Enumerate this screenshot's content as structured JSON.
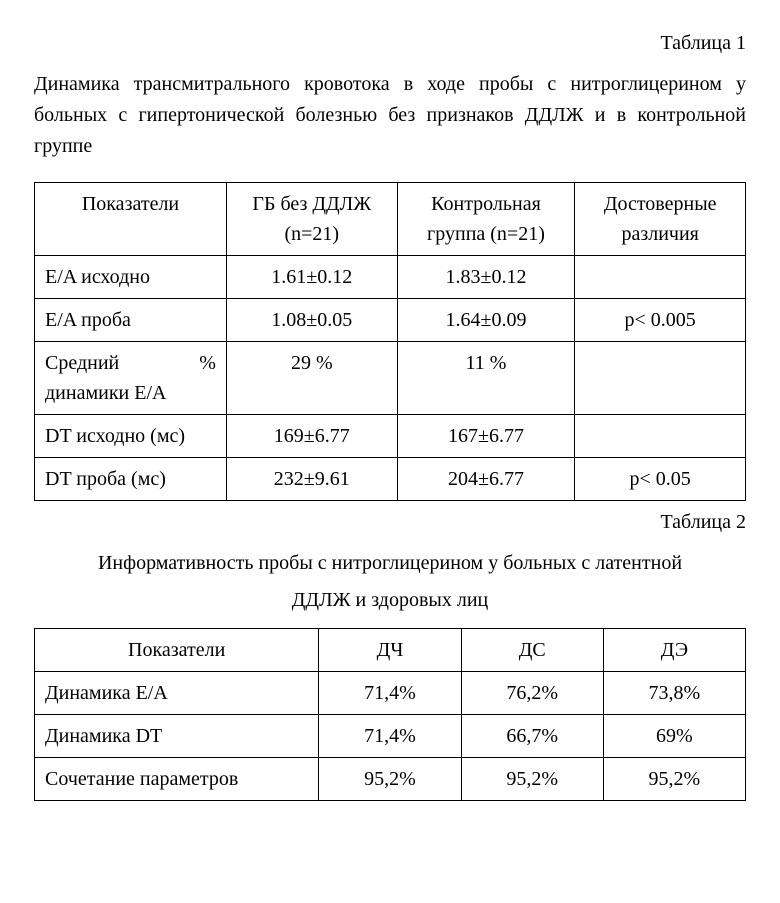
{
  "table1": {
    "label": "Таблица 1",
    "description": "Динамика трансмитрального кровотока в ходе пробы с нитроглицерином у больных с гипертонической болезнью без признаков ДДЛЖ и в контрольной группе",
    "columns": [
      "Показатели",
      "ГБ без ДДЛЖ (n=21)",
      "Контрольная группа (n=21)",
      "Достоверные различия"
    ],
    "rows": [
      {
        "param": "E/A исходно",
        "c2": "1.61±0.12",
        "c3": "1.83±0.12",
        "c4": ""
      },
      {
        "param": "E/A проба",
        "c2": "1.08±0.05",
        "c3": "1.64±0.09",
        "c4": "p< 0.005"
      },
      {
        "param_left": "Средний",
        "param_right": "%",
        "param_line2": "динамики E/A",
        "c2": "29 %",
        "c3": "11 %",
        "c4": ""
      },
      {
        "param": "DT исходно (мc)",
        "c2": "169±6.77",
        "c3": "167±6.77",
        "c4": ""
      },
      {
        "param": "DT проба (мc)",
        "c2": "232±9.61",
        "c3": "204±6.77",
        "c4": "p< 0.05"
      }
    ]
  },
  "table2": {
    "label": "Таблица 2",
    "description_line1": "Информативность пробы с нитроглицерином у больных с латентной",
    "description_line2": "ДДЛЖ и здоровых лиц",
    "columns": [
      "Показатели",
      "ДЧ",
      "ДС",
      "ДЭ"
    ],
    "rows": [
      {
        "param": "Динамика E/A",
        "c2": "71,4%",
        "c3": "76,2%",
        "c4": "73,8%"
      },
      {
        "param": "Динамика DT",
        "c2": "71,4%",
        "c3": "66,7%",
        "c4": "69%"
      },
      {
        "param": "Сочетание параметров",
        "c2": "95,2%",
        "c3": "95,2%",
        "c4": "95,2%"
      }
    ]
  }
}
